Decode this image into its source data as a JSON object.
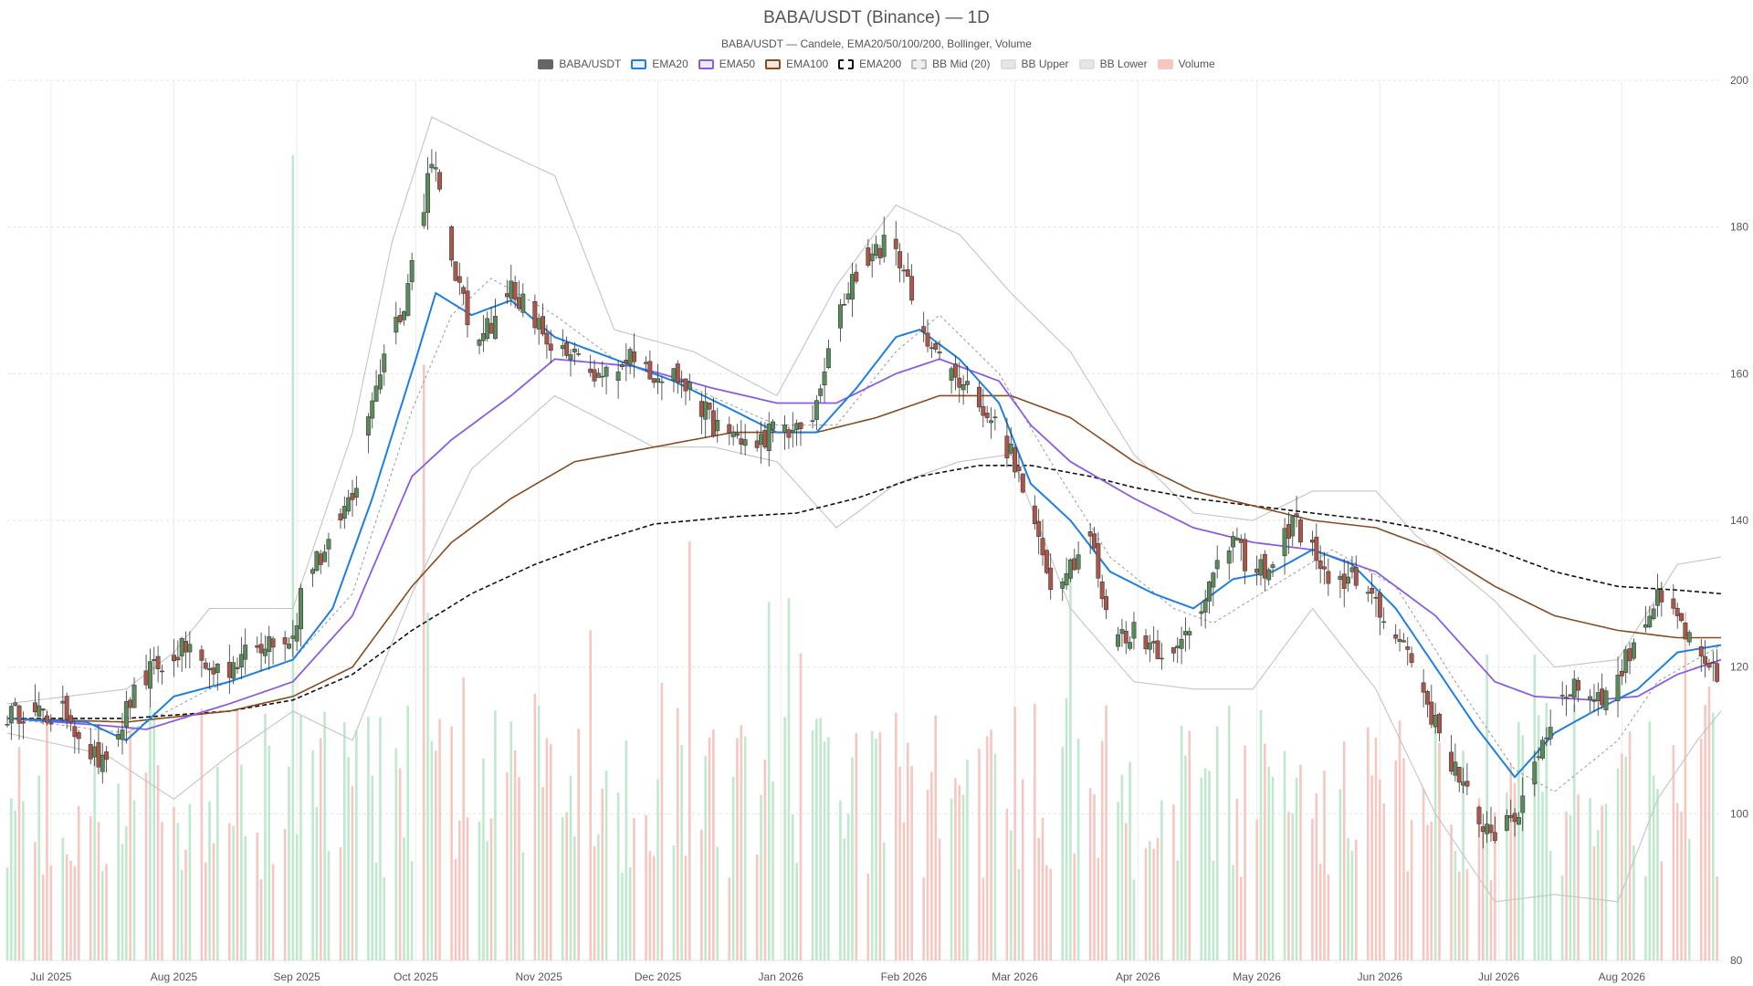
{
  "chart_data": {
    "type": "candlestick",
    "title": "BABA/USDT (Binance) — 1D",
    "subtitle": "BABA/USDT — Candele, EMA20/50/100/200, Bollinger, Volume",
    "ylim": [
      80,
      200
    ],
    "y_ticks": [
      80,
      100,
      120,
      140,
      160,
      180,
      200
    ],
    "x_range": [
      "2025-06-20",
      "2026-08-26"
    ],
    "x_ticks": [
      {
        "date": "2025-07-01",
        "label": "Jul 2025"
      },
      {
        "date": "2025-08-01",
        "label": "Aug 2025"
      },
      {
        "date": "2025-09-01",
        "label": "Sep 2025"
      },
      {
        "date": "2025-10-01",
        "label": "Oct 2025"
      },
      {
        "date": "2025-11-01",
        "label": "Nov 2025"
      },
      {
        "date": "2025-12-01",
        "label": "Dec 2025"
      },
      {
        "date": "2026-01-01",
        "label": "Jan 2026"
      },
      {
        "date": "2026-02-01",
        "label": "Feb 2026"
      },
      {
        "date": "2026-03-01",
        "label": "Mar 2026"
      },
      {
        "date": "2026-04-01",
        "label": "Apr 2026"
      },
      {
        "date": "2026-05-01",
        "label": "May 2026"
      },
      {
        "date": "2026-06-01",
        "label": "Jun 2026"
      },
      {
        "date": "2026-07-01",
        "label": "Jul 2026"
      },
      {
        "date": "2026-08-01",
        "label": "Aug 2026"
      }
    ],
    "grid": true,
    "legend_position": "top-center",
    "colors": {
      "up": "#5a8a5c",
      "down": "#a8574a",
      "vol_up": "#bfe8cc",
      "vol_down": "#f6c7c0",
      "ema20": "#1e7fe0",
      "ema50": "#8a5ce6",
      "ema100": "#8b4a1e",
      "ema200": "#111111",
      "bb_mid": "#999999",
      "bb_band": "#c4c4c4"
    },
    "legend": [
      {
        "label": "BABA/USDT",
        "swatch": "#666666",
        "border": "#666666",
        "dashed": false
      },
      {
        "label": "EMA20",
        "swatch": "#e6f1fb",
        "border": "#1e7fe0",
        "dashed": false
      },
      {
        "label": "EMA50",
        "swatch": "#f0eafb",
        "border": "#8a5ce6",
        "dashed": false
      },
      {
        "label": "EMA100",
        "swatch": "#f2e6dd",
        "border": "#8b4a1e",
        "dashed": false
      },
      {
        "label": "EMA200",
        "swatch": "#ffffff",
        "border": "#111111",
        "dashed": true
      },
      {
        "label": "BB Mid (20)",
        "swatch": "#eeeeee",
        "border": "#bbbbbb",
        "dashed": true
      },
      {
        "label": "BB Upper",
        "swatch": "#e6e6e6",
        "border": "#dddddd",
        "dashed": false
      },
      {
        "label": "BB Lower",
        "swatch": "#e6e6e6",
        "border": "#dddddd",
        "dashed": false
      },
      {
        "label": "Volume",
        "swatch": "#f6c7c0",
        "border": "#f6c7c0",
        "dashed": false
      }
    ],
    "close_series": [
      [
        "2025-06-20",
        113.5
      ],
      [
        "2025-06-25",
        114
      ],
      [
        "2025-06-30",
        113
      ],
      [
        "2025-07-05",
        114
      ],
      [
        "2025-07-10",
        109
      ],
      [
        "2025-07-15",
        106
      ],
      [
        "2025-07-20",
        114
      ],
      [
        "2025-07-25",
        119
      ],
      [
        "2025-07-30",
        121
      ],
      [
        "2025-08-05",
        123
      ],
      [
        "2025-08-10",
        119.5
      ],
      [
        "2025-08-15",
        120
      ],
      [
        "2025-08-20",
        122
      ],
      [
        "2025-08-25",
        124
      ],
      [
        "2025-08-31",
        124
      ],
      [
        "2025-09-03",
        133
      ],
      [
        "2025-09-07",
        135
      ],
      [
        "2025-09-12",
        140
      ],
      [
        "2025-09-16",
        145
      ],
      [
        "2025-09-20",
        157
      ],
      [
        "2025-09-24",
        164
      ],
      [
        "2025-09-28",
        170
      ],
      [
        "2025-10-02",
        180
      ],
      [
        "2025-10-05",
        190
      ],
      [
        "2025-10-10",
        176
      ],
      [
        "2025-10-15",
        165
      ],
      [
        "2025-10-20",
        167
      ],
      [
        "2025-10-25",
        172
      ],
      [
        "2025-10-30",
        168
      ],
      [
        "2025-11-05",
        163
      ],
      [
        "2025-11-10",
        162
      ],
      [
        "2025-11-15",
        159
      ],
      [
        "2025-11-20",
        161
      ],
      [
        "2025-11-25",
        163
      ],
      [
        "2025-11-30",
        160
      ],
      [
        "2025-12-05",
        160
      ],
      [
        "2025-12-10",
        157
      ],
      [
        "2025-12-15",
        153
      ],
      [
        "2025-12-20",
        152
      ],
      [
        "2025-12-25",
        150
      ],
      [
        "2025-12-31",
        153
      ],
      [
        "2026-01-05",
        152
      ],
      [
        "2026-01-10",
        155
      ],
      [
        "2026-01-15",
        168
      ],
      [
        "2026-01-20",
        174
      ],
      [
        "2026-01-25",
        177
      ],
      [
        "2026-01-30",
        178
      ],
      [
        "2026-02-03",
        170
      ],
      [
        "2026-02-08",
        164
      ],
      [
        "2026-02-13",
        160
      ],
      [
        "2026-02-18",
        158
      ],
      [
        "2026-02-23",
        154
      ],
      [
        "2026-02-28",
        149
      ],
      [
        "2026-03-05",
        141
      ],
      [
        "2026-03-10",
        132
      ],
      [
        "2026-03-15",
        134
      ],
      [
        "2026-03-20",
        138
      ],
      [
        "2026-03-25",
        124
      ],
      [
        "2026-03-31",
        125
      ],
      [
        "2026-04-05",
        123
      ],
      [
        "2026-04-10",
        121
      ],
      [
        "2026-04-15",
        127
      ],
      [
        "2026-04-20",
        132
      ],
      [
        "2026-04-25",
        137
      ],
      [
        "2026-04-30",
        133
      ],
      [
        "2026-05-05",
        134
      ],
      [
        "2026-05-10",
        140
      ],
      [
        "2026-05-15",
        136
      ],
      [
        "2026-05-20",
        130
      ],
      [
        "2026-05-25",
        133
      ],
      [
        "2026-05-31",
        128
      ],
      [
        "2026-06-05",
        125
      ],
      [
        "2026-06-10",
        120
      ],
      [
        "2026-06-15",
        112
      ],
      [
        "2026-06-20",
        106
      ],
      [
        "2026-06-25",
        100
      ],
      [
        "2026-06-30",
        97
      ],
      [
        "2026-07-05",
        99
      ],
      [
        "2026-07-10",
        107
      ],
      [
        "2026-07-15",
        114
      ],
      [
        "2026-07-20",
        118
      ],
      [
        "2026-07-25",
        116
      ],
      [
        "2026-07-30",
        117
      ],
      [
        "2026-08-05",
        125
      ],
      [
        "2026-08-10",
        129
      ],
      [
        "2026-08-15",
        127
      ],
      [
        "2026-08-20",
        121
      ],
      [
        "2026-08-26",
        118
      ]
    ],
    "ema20": [
      [
        "2025-06-20",
        113
      ],
      [
        "2025-07-10",
        112.5
      ],
      [
        "2025-07-20",
        110
      ],
      [
        "2025-08-01",
        116
      ],
      [
        "2025-08-15",
        118
      ],
      [
        "2025-08-31",
        121
      ],
      [
        "2025-09-10",
        128
      ],
      [
        "2025-09-20",
        143
      ],
      [
        "2025-10-01",
        162
      ],
      [
        "2025-10-06",
        171
      ],
      [
        "2025-10-15",
        168
      ],
      [
        "2025-10-25",
        170
      ],
      [
        "2025-11-05",
        165
      ],
      [
        "2025-11-20",
        162
      ],
      [
        "2025-12-05",
        159
      ],
      [
        "2025-12-20",
        155
      ],
      [
        "2025-12-31",
        152
      ],
      [
        "2026-01-10",
        152
      ],
      [
        "2026-01-20",
        158
      ],
      [
        "2026-01-30",
        165
      ],
      [
        "2026-02-05",
        166
      ],
      [
        "2026-02-15",
        162
      ],
      [
        "2026-02-25",
        156
      ],
      [
        "2026-03-05",
        145
      ],
      [
        "2026-03-15",
        140
      ],
      [
        "2026-03-25",
        133
      ],
      [
        "2026-04-05",
        130
      ],
      [
        "2026-04-15",
        128
      ],
      [
        "2026-04-25",
        132
      ],
      [
        "2026-05-05",
        133
      ],
      [
        "2026-05-15",
        136
      ],
      [
        "2026-05-25",
        134
      ],
      [
        "2026-06-05",
        128
      ],
      [
        "2026-06-15",
        120
      ],
      [
        "2026-06-25",
        112
      ],
      [
        "2026-07-05",
        105
      ],
      [
        "2026-07-15",
        111
      ],
      [
        "2026-07-25",
        114
      ],
      [
        "2026-08-05",
        117
      ],
      [
        "2026-08-15",
        122
      ],
      [
        "2026-08-26",
        123
      ]
    ],
    "ema50": [
      [
        "2025-06-20",
        113
      ],
      [
        "2025-07-15",
        112
      ],
      [
        "2025-07-25",
        111.5
      ],
      [
        "2025-08-15",
        115
      ],
      [
        "2025-08-31",
        118
      ],
      [
        "2025-09-15",
        127
      ],
      [
        "2025-09-30",
        146
      ],
      [
        "2025-10-10",
        151
      ],
      [
        "2025-10-25",
        157
      ],
      [
        "2025-11-05",
        162
      ],
      [
        "2025-11-25",
        161
      ],
      [
        "2025-12-15",
        158
      ],
      [
        "2025-12-31",
        156
      ],
      [
        "2026-01-15",
        156
      ],
      [
        "2026-01-30",
        160
      ],
      [
        "2026-02-10",
        162
      ],
      [
        "2026-02-25",
        159
      ],
      [
        "2026-03-05",
        153
      ],
      [
        "2026-03-15",
        148
      ],
      [
        "2026-03-31",
        143
      ],
      [
        "2026-04-15",
        139
      ],
      [
        "2026-04-30",
        137
      ],
      [
        "2026-05-15",
        136
      ],
      [
        "2026-05-31",
        133
      ],
      [
        "2026-06-15",
        127
      ],
      [
        "2026-06-30",
        118
      ],
      [
        "2026-07-10",
        116
      ],
      [
        "2026-07-25",
        115.5
      ],
      [
        "2026-08-05",
        116
      ],
      [
        "2026-08-15",
        119
      ],
      [
        "2026-08-26",
        121
      ]
    ],
    "ema100": [
      [
        "2025-06-20",
        113
      ],
      [
        "2025-07-20",
        112.5
      ],
      [
        "2025-08-15",
        114
      ],
      [
        "2025-08-31",
        116
      ],
      [
        "2025-09-15",
        120
      ],
      [
        "2025-09-30",
        131
      ],
      [
        "2025-10-10",
        137
      ],
      [
        "2025-10-25",
        143
      ],
      [
        "2025-11-10",
        148
      ],
      [
        "2025-11-30",
        150
      ],
      [
        "2025-12-20",
        152
      ],
      [
        "2026-01-10",
        152
      ],
      [
        "2026-01-25",
        154
      ],
      [
        "2026-02-10",
        157
      ],
      [
        "2026-02-28",
        157
      ],
      [
        "2026-03-15",
        154
      ],
      [
        "2026-03-31",
        148
      ],
      [
        "2026-04-15",
        144
      ],
      [
        "2026-04-30",
        142
      ],
      [
        "2026-05-15",
        140
      ],
      [
        "2026-05-31",
        139
      ],
      [
        "2026-06-15",
        136
      ],
      [
        "2026-06-30",
        131
      ],
      [
        "2026-07-15",
        127
      ],
      [
        "2026-07-31",
        125
      ],
      [
        "2026-08-15",
        124
      ],
      [
        "2026-08-26",
        124
      ]
    ],
    "ema200": [
      [
        "2025-06-20",
        113
      ],
      [
        "2025-07-20",
        113
      ],
      [
        "2025-08-15",
        114
      ],
      [
        "2025-08-31",
        115.5
      ],
      [
        "2025-09-15",
        119
      ],
      [
        "2025-09-30",
        125
      ],
      [
        "2025-10-15",
        130
      ],
      [
        "2025-10-31",
        134
      ],
      [
        "2025-11-15",
        137
      ],
      [
        "2025-11-30",
        139.5
      ],
      [
        "2025-12-20",
        140.5
      ],
      [
        "2026-01-05",
        141
      ],
      [
        "2026-01-20",
        143
      ],
      [
        "2026-02-05",
        146
      ],
      [
        "2026-02-20",
        147.5
      ],
      [
        "2026-03-05",
        147.5
      ],
      [
        "2026-03-20",
        146
      ],
      [
        "2026-03-31",
        144.5
      ],
      [
        "2026-04-15",
        143
      ],
      [
        "2026-04-30",
        142
      ],
      [
        "2026-05-15",
        141
      ],
      [
        "2026-05-31",
        140
      ],
      [
        "2026-06-15",
        138.5
      ],
      [
        "2026-06-30",
        136
      ],
      [
        "2026-07-15",
        133
      ],
      [
        "2026-07-31",
        131
      ],
      [
        "2026-08-15",
        130.5
      ],
      [
        "2026-08-26",
        130
      ]
    ],
    "bb_mid": [
      [
        "2025-06-20",
        113
      ],
      [
        "2025-07-20",
        111
      ],
      [
        "2025-08-10",
        117
      ],
      [
        "2025-08-31",
        121
      ],
      [
        "2025-09-15",
        130
      ],
      [
        "2025-09-30",
        155
      ],
      [
        "2025-10-10",
        168
      ],
      [
        "2025-10-20",
        173
      ],
      [
        "2025-11-05",
        168
      ],
      [
        "2025-11-20",
        162
      ],
      [
        "2025-12-10",
        158
      ],
      [
        "2025-12-31",
        153
      ],
      [
        "2026-01-15",
        153
      ],
      [
        "2026-01-30",
        163
      ],
      [
        "2026-02-10",
        168
      ],
      [
        "2026-02-25",
        160
      ],
      [
        "2026-03-10",
        148
      ],
      [
        "2026-03-25",
        135
      ],
      [
        "2026-04-10",
        128
      ],
      [
        "2026-04-20",
        126
      ],
      [
        "2026-05-05",
        131
      ],
      [
        "2026-05-20",
        136
      ],
      [
        "2026-06-05",
        131
      ],
      [
        "2026-06-20",
        118
      ],
      [
        "2026-07-05",
        106
      ],
      [
        "2026-07-15",
        103
      ],
      [
        "2026-07-31",
        110
      ],
      [
        "2026-08-10",
        118
      ],
      [
        "2026-08-26",
        123
      ]
    ],
    "bb_upper": [
      [
        "2025-06-20",
        115
      ],
      [
        "2025-07-20",
        117
      ],
      [
        "2025-08-01",
        122
      ],
      [
        "2025-08-10",
        128
      ],
      [
        "2025-08-31",
        128
      ],
      [
        "2025-09-15",
        152
      ],
      [
        "2025-09-25",
        178
      ],
      [
        "2025-10-05",
        195
      ],
      [
        "2025-10-20",
        191
      ],
      [
        "2025-11-05",
        187
      ],
      [
        "2025-11-20",
        166
      ],
      [
        "2025-12-10",
        163
      ],
      [
        "2025-12-31",
        157
      ],
      [
        "2026-01-15",
        172
      ],
      [
        "2026-01-30",
        183
      ],
      [
        "2026-02-15",
        179
      ],
      [
        "2026-02-28",
        171
      ],
      [
        "2026-03-15",
        163
      ],
      [
        "2026-03-31",
        149
      ],
      [
        "2026-04-15",
        141
      ],
      [
        "2026-04-30",
        140
      ],
      [
        "2026-05-15",
        144
      ],
      [
        "2026-05-31",
        144
      ],
      [
        "2026-06-10",
        138
      ],
      [
        "2026-06-30",
        129
      ],
      [
        "2026-07-15",
        120
      ],
      [
        "2026-07-31",
        121
      ],
      [
        "2026-08-15",
        134
      ],
      [
        "2026-08-26",
        135
      ]
    ],
    "bb_lower": [
      [
        "2025-06-20",
        111
      ],
      [
        "2025-07-15",
        108
      ],
      [
        "2025-08-01",
        102
      ],
      [
        "2025-08-15",
        108
      ],
      [
        "2025-08-31",
        114
      ],
      [
        "2025-09-15",
        110
      ],
      [
        "2025-09-30",
        130
      ],
      [
        "2025-10-15",
        147
      ],
      [
        "2025-11-05",
        157
      ],
      [
        "2025-11-30",
        150
      ],
      [
        "2025-12-15",
        150
      ],
      [
        "2025-12-31",
        148
      ],
      [
        "2026-01-15",
        139
      ],
      [
        "2026-01-30",
        145
      ],
      [
        "2026-02-15",
        148
      ],
      [
        "2026-02-28",
        149
      ],
      [
        "2026-03-15",
        128
      ],
      [
        "2026-03-31",
        118
      ],
      [
        "2026-04-15",
        117
      ],
      [
        "2026-04-30",
        117
      ],
      [
        "2026-05-15",
        128
      ],
      [
        "2026-05-31",
        117
      ],
      [
        "2026-06-15",
        100
      ],
      [
        "2026-06-30",
        88
      ],
      [
        "2026-07-15",
        89
      ],
      [
        "2026-07-31",
        88
      ],
      [
        "2026-08-10",
        102
      ],
      [
        "2026-08-20",
        110
      ],
      [
        "2026-08-26",
        114
      ]
    ],
    "volume_scale_max": 100,
    "volume_spikes": [
      [
        "2025-08-31",
        100,
        "up"
      ],
      [
        "2025-10-03",
        74,
        "down"
      ],
      [
        "2025-12-09",
        52,
        "down"
      ],
      [
        "2026-01-03",
        45,
        "up"
      ],
      [
        "2026-03-15",
        50,
        "up"
      ],
      [
        "2026-06-28",
        38,
        "up"
      ],
      [
        "2026-07-10",
        38,
        "up"
      ],
      [
        "2026-08-23",
        34,
        "down"
      ]
    ]
  }
}
